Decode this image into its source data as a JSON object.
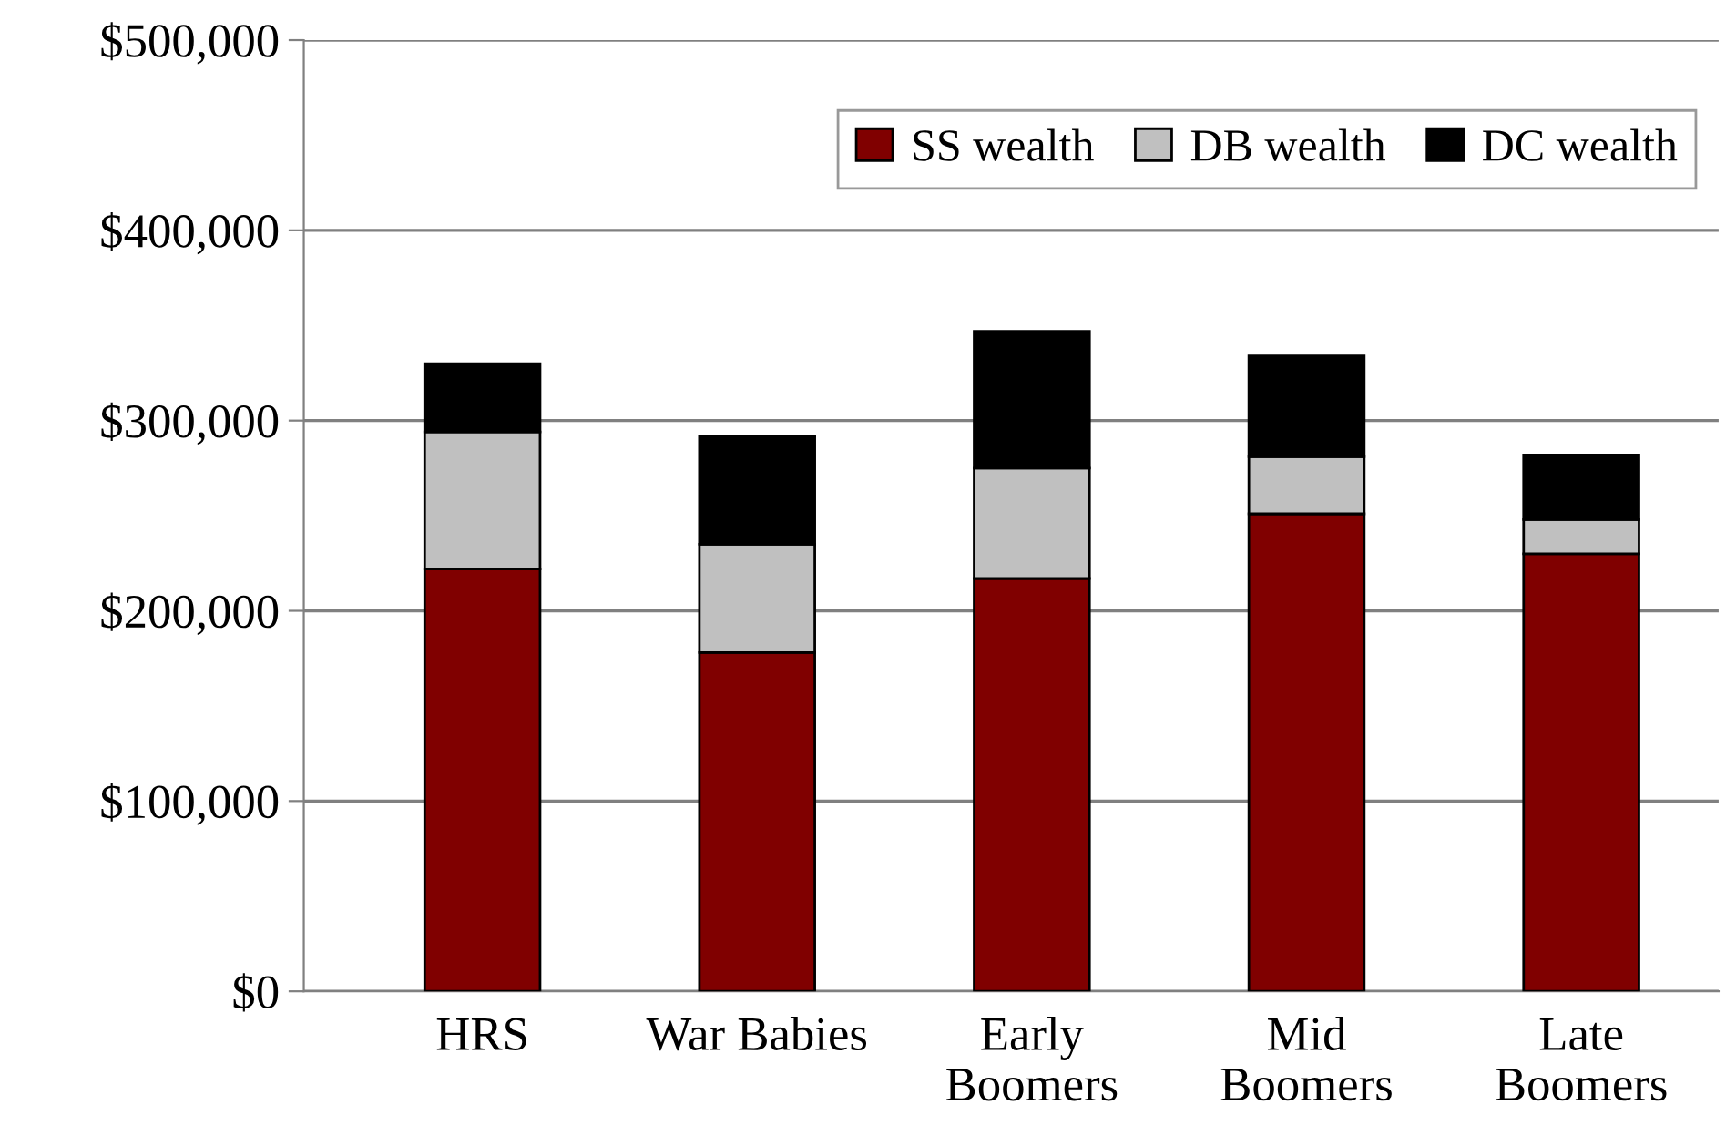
{
  "chart_data": {
    "type": "bar",
    "stacked": true,
    "categories": [
      "HRS",
      "War Babies",
      "Early\nBoomers",
      "Mid\nBoomers",
      "Late\nBoomers"
    ],
    "series": [
      {
        "name": "SS wealth",
        "color": "#800000",
        "values": [
          222000,
          178000,
          217000,
          251000,
          230000
        ]
      },
      {
        "name": "DB wealth",
        "color": "#c0c0c0",
        "values": [
          72000,
          57000,
          58000,
          30000,
          18000
        ]
      },
      {
        "name": "DC wealth",
        "color": "#000000",
        "values": [
          36000,
          57000,
          72000,
          53000,
          34000
        ]
      }
    ],
    "ylim": [
      0,
      500000
    ],
    "yticks": [
      {
        "value": 0,
        "label": "$0"
      },
      {
        "value": 100000,
        "label": "$100,000"
      },
      {
        "value": 200000,
        "label": "$200,000"
      },
      {
        "value": 300000,
        "label": "$300,000"
      },
      {
        "value": 400000,
        "label": "$400,000"
      },
      {
        "value": 500000,
        "label": "$500,000"
      }
    ],
    "grid": "y",
    "legend": "top right"
  }
}
